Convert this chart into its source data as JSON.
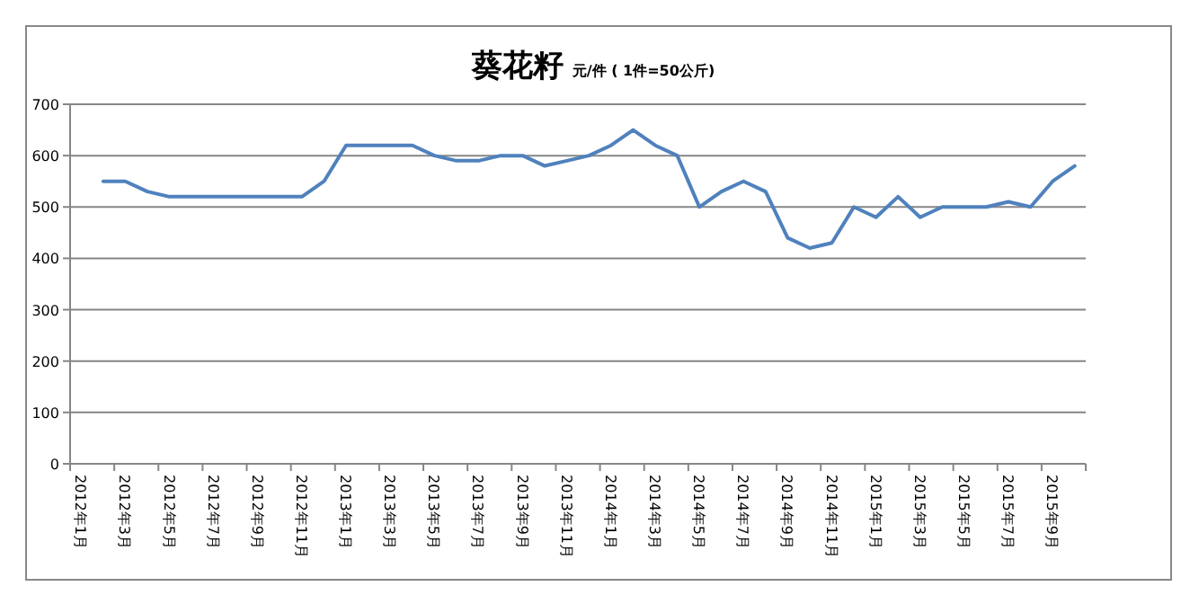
{
  "chart_data": {
    "type": "line",
    "title": "葵花籽",
    "subtitle": "元/件 ( 1件=50公斤)",
    "categories": [
      "2012年1月",
      null,
      "2012年3月",
      null,
      "2012年5月",
      null,
      "2012年7月",
      null,
      "2012年9月",
      null,
      "2012年11月",
      null,
      "2013年1月",
      null,
      "2013年3月",
      null,
      "2013年5月",
      null,
      "2013年7月",
      null,
      "2013年9月",
      null,
      "2013年11月",
      null,
      "2014年1月",
      null,
      "2014年3月",
      null,
      "2014年5月",
      null,
      "2014年7月",
      null,
      "2014年9月",
      null,
      "2014年11月",
      null,
      "2015年1月",
      null,
      "2015年3月",
      null,
      "2015年5月",
      null,
      "2015年7月",
      null,
      "2015年9月",
      null
    ],
    "series": [
      {
        "color": "#4f81bd",
        "values": [
          null,
          550,
          550,
          530,
          520,
          520,
          520,
          520,
          520,
          520,
          520,
          550,
          620,
          620,
          620,
          620,
          600,
          590,
          590,
          600,
          600,
          580,
          590,
          600,
          620,
          650,
          620,
          600,
          500,
          530,
          550,
          530,
          440,
          420,
          430,
          500,
          480,
          520,
          480,
          500,
          500,
          500,
          510,
          500,
          550,
          580
        ]
      }
    ],
    "ylim": [
      0,
      700
    ],
    "yticks": [
      0,
      100,
      200,
      300,
      400,
      500,
      600,
      700
    ],
    "grid": "y"
  }
}
